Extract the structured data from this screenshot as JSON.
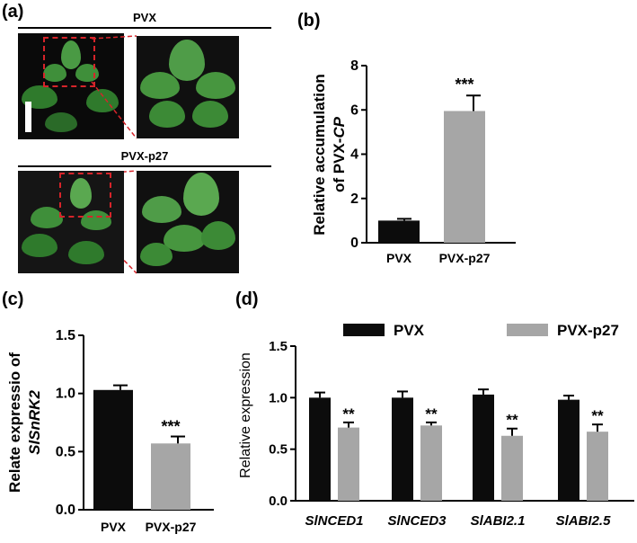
{
  "panels": {
    "a": {
      "label": "(a)",
      "top_title": "PVX",
      "bottom_title": "PVX-p27"
    },
    "b": {
      "label": "(b)"
    },
    "c": {
      "label": "(c)"
    },
    "d": {
      "label": "(d)"
    }
  },
  "colors": {
    "black_bar": "#0c0c0c",
    "gray_bar": "#a6a6a6",
    "leaf": "#3f8f3a",
    "leaf_dark": "#2a6a28",
    "dashed_box": "#d6242a"
  },
  "chart_data": [
    {
      "id": "b",
      "type": "bar",
      "categories": [
        "PVX",
        "PVX-p27"
      ],
      "values": [
        1.0,
        5.95
      ],
      "errors": [
        0.08,
        0.7
      ],
      "significance": [
        "",
        "***"
      ],
      "colors": [
        "#0c0c0c",
        "#a6a6a6"
      ],
      "ylabel_line1": "Relative accumulation",
      "ylabel_line2_prefix": "of PVX-",
      "ylabel_line2_italic": "CP",
      "ylim": [
        0,
        8
      ],
      "yticks": [
        "0",
        "2",
        "4",
        "6",
        "8"
      ],
      "ytick_values": [
        0,
        2,
        4,
        6,
        8
      ]
    },
    {
      "id": "c",
      "type": "bar",
      "categories": [
        "PVX",
        "PVX-p27"
      ],
      "values": [
        1.03,
        0.57
      ],
      "errors": [
        0.04,
        0.06
      ],
      "significance": [
        "",
        "***"
      ],
      "colors": [
        "#0c0c0c",
        "#a6a6a6"
      ],
      "ylabel_line1": "Relate expressio of",
      "ylabel_line2_italic": "SlSnRK2",
      "ylim": [
        0,
        1.5
      ],
      "yticks": [
        "0.0",
        "0.5",
        "1.0",
        "1.5"
      ],
      "ytick_values": [
        0,
        0.5,
        1.0,
        1.5
      ]
    },
    {
      "id": "d",
      "type": "bar",
      "categories": [
        "SlNCED1",
        "SlNCED3",
        "SlABI2.1",
        "SlABI2.5"
      ],
      "series": [
        {
          "name": "PVX",
          "values": [
            1.0,
            1.0,
            1.03,
            0.98
          ],
          "errors": [
            0.05,
            0.06,
            0.05,
            0.04
          ],
          "color": "#0c0c0c"
        },
        {
          "name": "PVX-p27",
          "values": [
            0.71,
            0.73,
            0.63,
            0.67
          ],
          "errors": [
            0.05,
            0.03,
            0.07,
            0.07
          ],
          "color": "#a6a6a6"
        }
      ],
      "significance": [
        "**",
        "**",
        "**",
        "**"
      ],
      "ylabel": "Relative expression",
      "ylim": [
        0,
        1.5
      ],
      "yticks": [
        "0.0",
        "0.5",
        "1.0",
        "1.5"
      ],
      "ytick_values": [
        0,
        0.5,
        1.0,
        1.5
      ],
      "legend_position": "top"
    }
  ]
}
